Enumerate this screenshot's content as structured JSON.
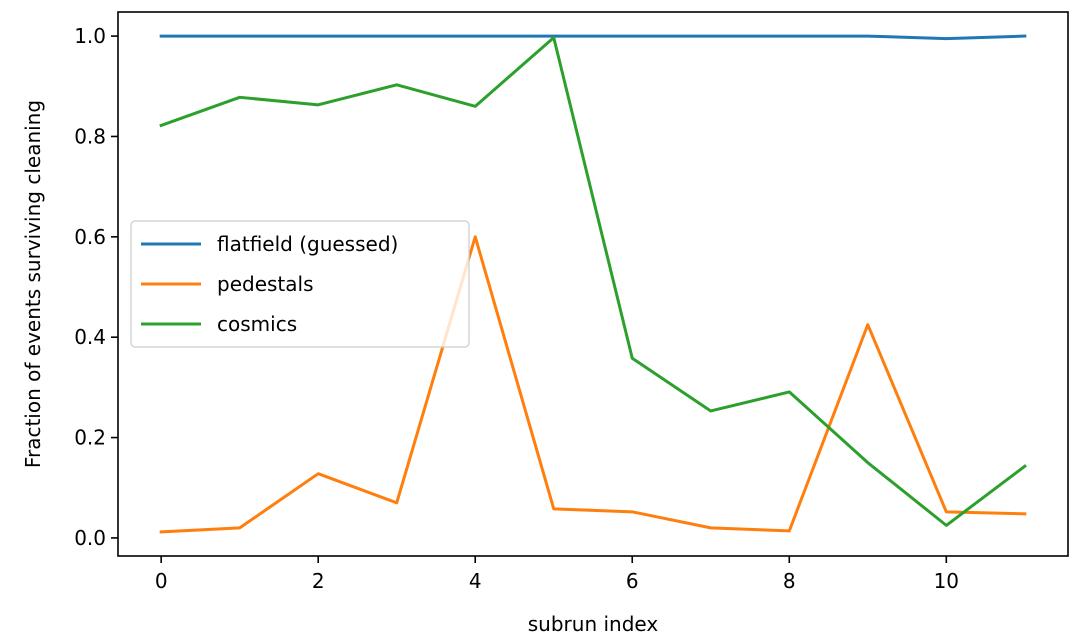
{
  "chart_data": {
    "type": "line",
    "title": "",
    "xlabel": "subrun index",
    "ylabel": "Fraction of events surviving cleaning",
    "xlim": [
      -0.55,
      11.55
    ],
    "ylim": [
      -0.036,
      1.048
    ],
    "xticks": [
      0,
      2,
      4,
      6,
      8,
      10
    ],
    "xtick_labels": [
      "0",
      "2",
      "4",
      "6",
      "8",
      "10"
    ],
    "yticks": [
      0.0,
      0.2,
      0.4,
      0.6,
      0.8,
      1.0
    ],
    "ytick_labels": [
      "0.0",
      "0.2",
      "0.4",
      "0.6",
      "0.8",
      "1.0"
    ],
    "grid": false,
    "legend_position": "center-left",
    "x": [
      0,
      1,
      2,
      3,
      4,
      5,
      6,
      7,
      8,
      9,
      10,
      11
    ],
    "series": [
      {
        "name": "flatfield (guessed)",
        "color": "#1f77b4",
        "values": [
          1.0,
          1.0,
          1.0,
          1.0,
          1.0,
          1.0,
          1.0,
          1.0,
          1.0,
          1.0,
          0.995,
          1.0
        ]
      },
      {
        "name": "pedestals",
        "color": "#ff7f0e",
        "values": [
          0.012,
          0.02,
          0.128,
          0.07,
          0.6,
          0.058,
          0.052,
          0.02,
          0.014,
          0.425,
          0.052,
          0.048
        ]
      },
      {
        "name": "cosmics",
        "color": "#2ca02c",
        "values": [
          0.822,
          0.878,
          0.863,
          0.903,
          0.86,
          0.997,
          0.358,
          0.253,
          0.291,
          0.15,
          0.025,
          0.143
        ]
      }
    ]
  }
}
